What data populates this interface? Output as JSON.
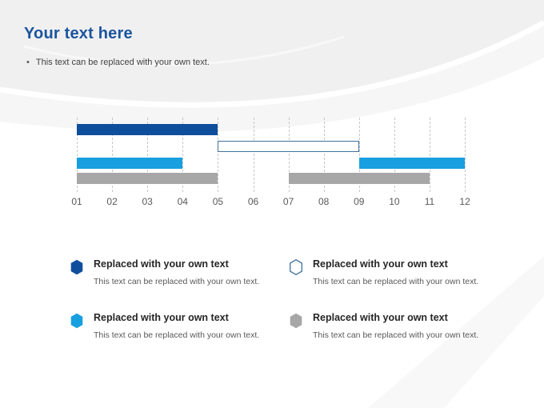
{
  "slide": {
    "title": "Your text here",
    "bullet_text": "This text can be replaced with your own text."
  },
  "chart_data": {
    "type": "bar",
    "variant": "horizontal-gantt",
    "title": "",
    "xlabel": "",
    "ylabel": "",
    "x_ticks": [
      "01",
      "02",
      "03",
      "04",
      "05",
      "06",
      "07",
      "08",
      "09",
      "10",
      "11",
      "12"
    ],
    "x_range": [
      1,
      12
    ],
    "grid": "vertical-dashed",
    "legend_position": "below-2x2",
    "series": [
      {
        "name": "dark-blue",
        "style": "filled",
        "color": "#0F4E9C",
        "segments": [
          {
            "start": 1,
            "end": 5
          }
        ]
      },
      {
        "name": "outlined",
        "style": "outlined",
        "color": "#41719C",
        "segments": [
          {
            "start": 5,
            "end": 9
          }
        ]
      },
      {
        "name": "light-blue",
        "style": "filled",
        "color": "#189FE0",
        "segments": [
          {
            "start": 1,
            "end": 4
          },
          {
            "start": 9,
            "end": 12
          }
        ]
      },
      {
        "name": "gray",
        "style": "filled",
        "color": "#A7A7A7",
        "segments": [
          {
            "start": 1,
            "end": 5
          },
          {
            "start": 7,
            "end": 11
          }
        ]
      }
    ]
  },
  "legend": {
    "items": [
      {
        "icon": "hexagon-icon",
        "style": "filled",
        "color": "#0F4E9C",
        "title": "Replaced with your own text",
        "description": "This text can be replaced with your own text."
      },
      {
        "icon": "hexagon-icon",
        "style": "outlined",
        "color": "#41719C",
        "title": "Replaced with your own text",
        "description": "This text can be replaced with your own text."
      },
      {
        "icon": "hexagon-icon",
        "style": "filled",
        "color": "#189FE0",
        "title": "Replaced with your own text",
        "description": "This text can be replaced with your own text."
      },
      {
        "icon": "hexagon-icon",
        "style": "filled",
        "color": "#A7A7A7",
        "title": "Replaced with your own text",
        "description": "This text can be replaced with your own text."
      }
    ]
  },
  "colors": {
    "title_text": "#1B549D",
    "axis_text": "#595959",
    "legend_title_text": "#262626",
    "legend_description_text": "#595959",
    "bullet_text": "#404040",
    "gridline": "#C6C6C9",
    "outline_stroke": "#41719C"
  }
}
